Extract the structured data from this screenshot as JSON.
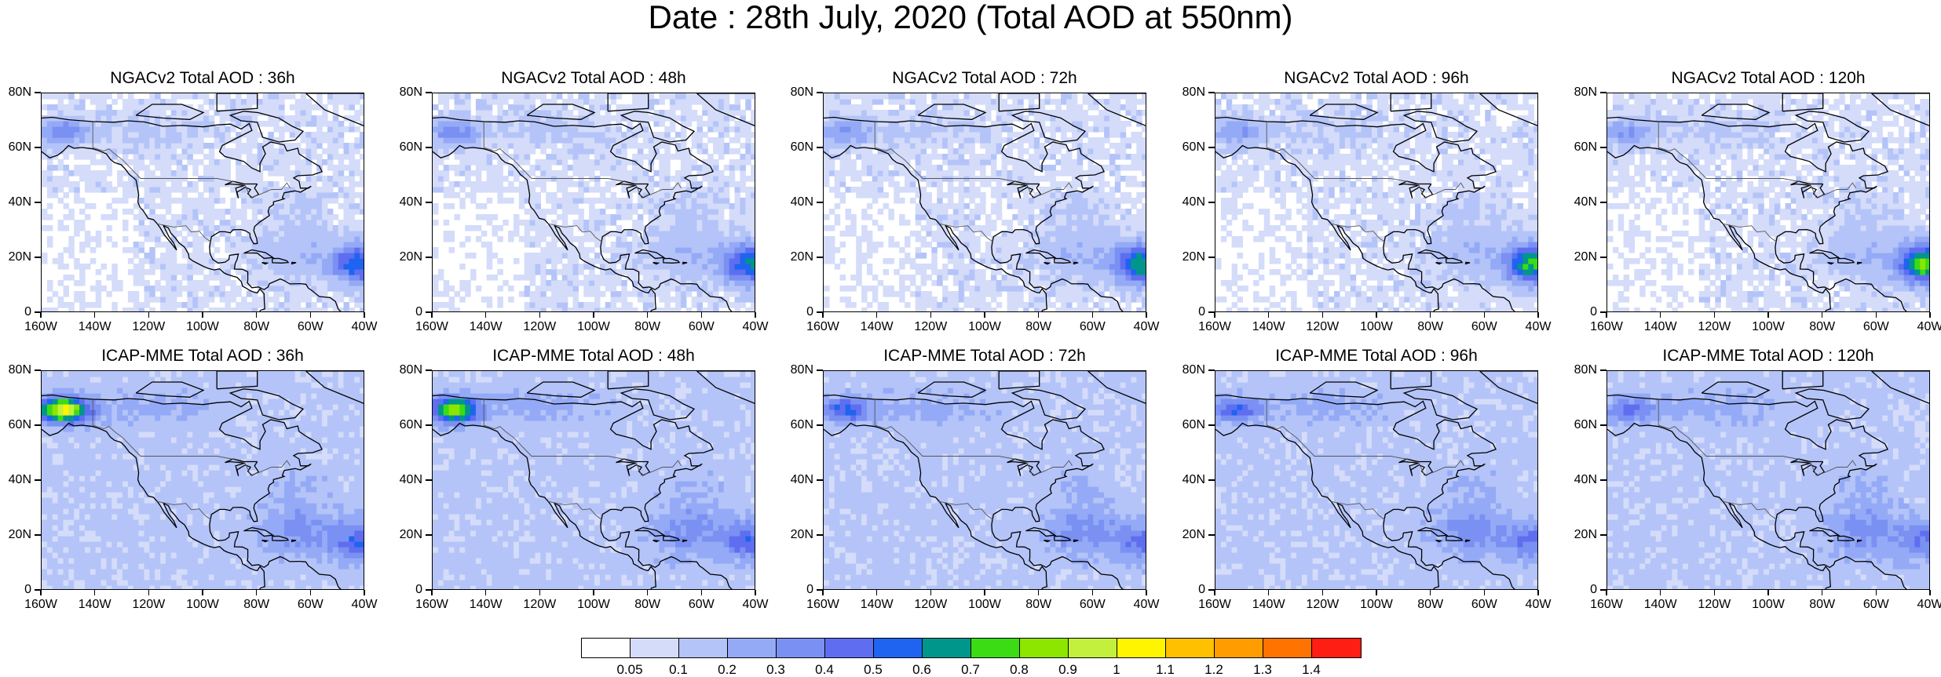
{
  "title": "Date : 28th July, 2020 (Total AOD at 550nm)",
  "panels": [
    {
      "title": "NGACv2 Total AOD : 36h",
      "row": 0,
      "col": 0,
      "hot": 0.52,
      "alaska": 0.3
    },
    {
      "title": "NGACv2 Total AOD : 48h",
      "row": 0,
      "col": 1,
      "hot": 0.56,
      "alaska": 0.3
    },
    {
      "title": "NGACv2 Total AOD : 72h",
      "row": 0,
      "col": 2,
      "hot": 0.62,
      "alaska": 0.25
    },
    {
      "title": "NGACv2 Total AOD : 96h",
      "row": 0,
      "col": 3,
      "hot": 0.68,
      "alaska": 0.25
    },
    {
      "title": "NGACv2 Total AOD : 120h",
      "row": 0,
      "col": 4,
      "hot": 0.72,
      "alaska": 0.25
    },
    {
      "title": "ICAP-MME Total AOD : 36h",
      "row": 1,
      "col": 0,
      "hot": 0.35,
      "alaska": 0.9
    },
    {
      "title": "ICAP-MME Total AOD : 48h",
      "row": 1,
      "col": 1,
      "hot": 0.35,
      "alaska": 0.75
    },
    {
      "title": "ICAP-MME Total AOD : 72h",
      "row": 1,
      "col": 2,
      "hot": 0.3,
      "alaska": 0.4
    },
    {
      "title": "ICAP-MME Total AOD : 96h",
      "row": 1,
      "col": 3,
      "hot": 0.3,
      "alaska": 0.35
    },
    {
      "title": "ICAP-MME Total AOD : 120h",
      "row": 1,
      "col": 4,
      "hot": 0.28,
      "alaska": 0.3
    }
  ],
  "lat_labels": [
    "0",
    "20N",
    "40N",
    "60N",
    "80N"
  ],
  "lon_labels": [
    "160W",
    "140W",
    "120W",
    "100W",
    "80W",
    "60W",
    "40W"
  ],
  "colorbar": {
    "labels": [
      "0.05",
      "0.1",
      "0.2",
      "0.3",
      "0.4",
      "0.5",
      "0.6",
      "0.7",
      "0.8",
      "0.9",
      "1",
      "1.1",
      "1.2",
      "1.3",
      "1.4"
    ],
    "colors": [
      "#ffffff",
      "#d4dcfa",
      "#b4c4f8",
      "#94aaf6",
      "#7a90f2",
      "#5f6ef0",
      "#1e64f0",
      "#00968c",
      "#3cdc14",
      "#8ce600",
      "#c3f03c",
      "#fff500",
      "#ffc000",
      "#ff9c00",
      "#ff7300",
      "#ff1e14"
    ]
  }
}
